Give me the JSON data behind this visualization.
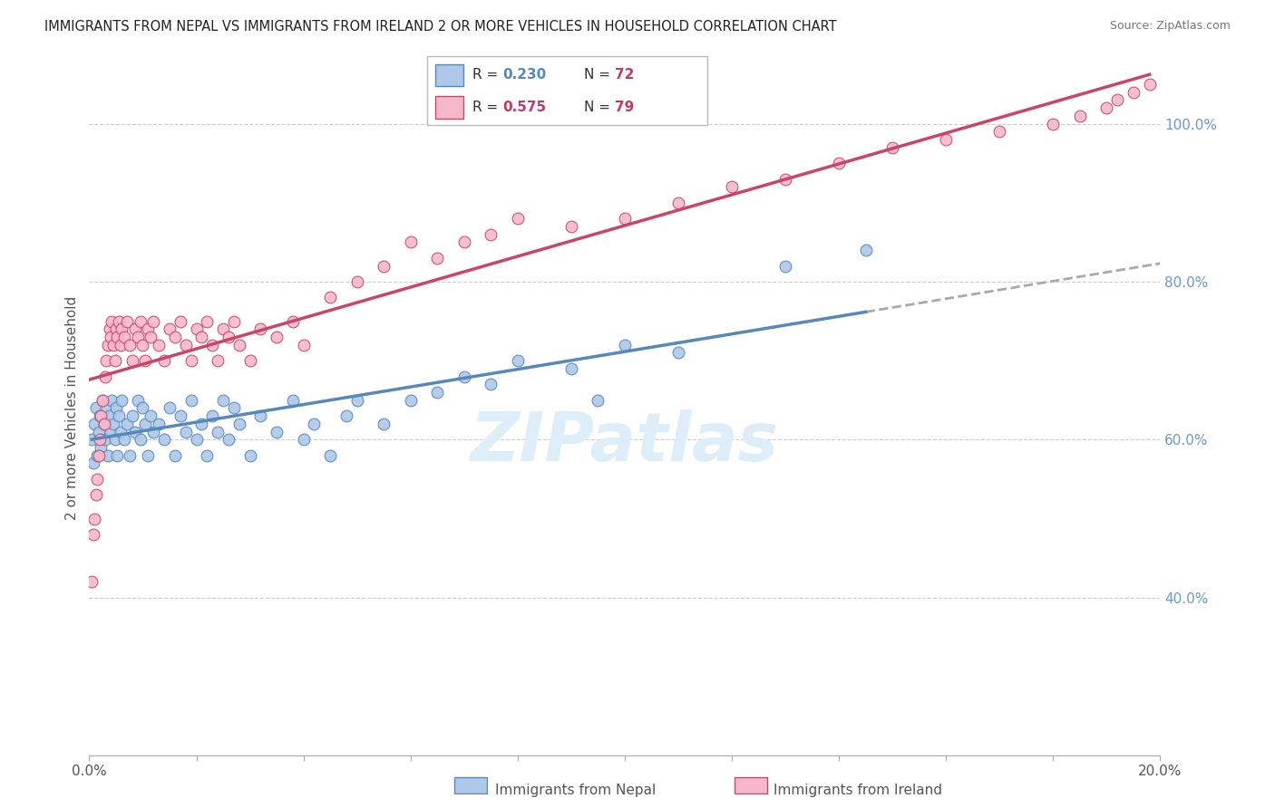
{
  "title": "IMMIGRANTS FROM NEPAL VS IMMIGRANTS FROM IRELAND 2 OR MORE VEHICLES IN HOUSEHOLD CORRELATION CHART",
  "source": "Source: ZipAtlas.com",
  "ylabel": "2 or more Vehicles in Household",
  "yticks": [
    40.0,
    60.0,
    80.0,
    100.0
  ],
  "xtick_positions": [
    0.0,
    2.0,
    4.0,
    6.0,
    8.0,
    10.0,
    12.0,
    14.0,
    16.0,
    18.0,
    20.0
  ],
  "xlim": [
    0.0,
    20.0
  ],
  "ylim": [
    20.0,
    108.0
  ],
  "color_nepal": "#adc8e8",
  "color_ireland": "#f5b8ca",
  "color_nepal_line": "#5588bb",
  "color_ireland_line": "#e06080",
  "color_nepal_dark": "#3366aa",
  "color_ireland_dark": "#cc4466",
  "watermark_color": "#ddeef8",
  "nepal_r": 0.23,
  "nepal_n": 72,
  "ireland_r": 0.575,
  "ireland_n": 79,
  "nepal_scatter_x": [
    0.05,
    0.08,
    0.1,
    0.12,
    0.15,
    0.18,
    0.2,
    0.22,
    0.25,
    0.28,
    0.3,
    0.32,
    0.35,
    0.38,
    0.4,
    0.42,
    0.45,
    0.48,
    0.5,
    0.52,
    0.55,
    0.58,
    0.6,
    0.65,
    0.7,
    0.75,
    0.8,
    0.85,
    0.9,
    0.95,
    1.0,
    1.05,
    1.1,
    1.15,
    1.2,
    1.3,
    1.4,
    1.5,
    1.6,
    1.7,
    1.8,
    1.9,
    2.0,
    2.1,
    2.2,
    2.3,
    2.4,
    2.5,
    2.6,
    2.7,
    2.8,
    3.0,
    3.2,
    3.5,
    3.8,
    4.0,
    4.2,
    4.5,
    4.8,
    5.0,
    5.5,
    6.0,
    6.5,
    7.0,
    7.5,
    8.0,
    9.0,
    9.5,
    10.0,
    11.0,
    13.0,
    14.5
  ],
  "nepal_scatter_y": [
    60.0,
    57.0,
    62.0,
    64.0,
    58.0,
    61.0,
    63.0,
    59.0,
    65.0,
    62.0,
    60.0,
    64.0,
    58.0,
    63.0,
    61.0,
    65.0,
    62.0,
    60.0,
    64.0,
    58.0,
    63.0,
    61.0,
    65.0,
    60.0,
    62.0,
    58.0,
    63.0,
    61.0,
    65.0,
    60.0,
    64.0,
    62.0,
    58.0,
    63.0,
    61.0,
    62.0,
    60.0,
    64.0,
    58.0,
    63.0,
    61.0,
    65.0,
    60.0,
    62.0,
    58.0,
    63.0,
    61.0,
    65.0,
    60.0,
    64.0,
    62.0,
    58.0,
    63.0,
    61.0,
    65.0,
    60.0,
    62.0,
    58.0,
    63.0,
    65.0,
    62.0,
    65.0,
    66.0,
    68.0,
    67.0,
    70.0,
    69.0,
    65.0,
    72.0,
    71.0,
    82.0,
    84.0
  ],
  "ireland_scatter_x": [
    0.05,
    0.08,
    0.1,
    0.12,
    0.15,
    0.18,
    0.2,
    0.22,
    0.25,
    0.28,
    0.3,
    0.32,
    0.35,
    0.38,
    0.4,
    0.42,
    0.45,
    0.48,
    0.5,
    0.52,
    0.55,
    0.58,
    0.6,
    0.65,
    0.7,
    0.75,
    0.8,
    0.85,
    0.9,
    0.95,
    1.0,
    1.05,
    1.1,
    1.15,
    1.2,
    1.3,
    1.4,
    1.5,
    1.6,
    1.7,
    1.8,
    1.9,
    2.0,
    2.1,
    2.2,
    2.3,
    2.4,
    2.5,
    2.6,
    2.7,
    2.8,
    3.0,
    3.2,
    3.5,
    3.8,
    4.0,
    4.5,
    5.0,
    5.5,
    6.0,
    6.5,
    7.0,
    7.5,
    8.0,
    9.0,
    10.0,
    11.0,
    12.0,
    13.0,
    14.0,
    15.0,
    16.0,
    17.0,
    18.0,
    18.5,
    19.0,
    19.2,
    19.5,
    19.8
  ],
  "ireland_scatter_y": [
    42.0,
    48.0,
    50.0,
    53.0,
    55.0,
    58.0,
    60.0,
    63.0,
    65.0,
    62.0,
    68.0,
    70.0,
    72.0,
    74.0,
    73.0,
    75.0,
    72.0,
    70.0,
    74.0,
    73.0,
    75.0,
    72.0,
    74.0,
    73.0,
    75.0,
    72.0,
    70.0,
    74.0,
    73.0,
    75.0,
    72.0,
    70.0,
    74.0,
    73.0,
    75.0,
    72.0,
    70.0,
    74.0,
    73.0,
    75.0,
    72.0,
    70.0,
    74.0,
    73.0,
    75.0,
    72.0,
    70.0,
    74.0,
    73.0,
    75.0,
    72.0,
    70.0,
    74.0,
    73.0,
    75.0,
    72.0,
    78.0,
    80.0,
    82.0,
    85.0,
    83.0,
    85.0,
    86.0,
    88.0,
    87.0,
    88.0,
    90.0,
    92.0,
    93.0,
    95.0,
    97.0,
    98.0,
    99.0,
    100.0,
    101.0,
    102.0,
    103.0,
    104.0,
    105.0
  ]
}
